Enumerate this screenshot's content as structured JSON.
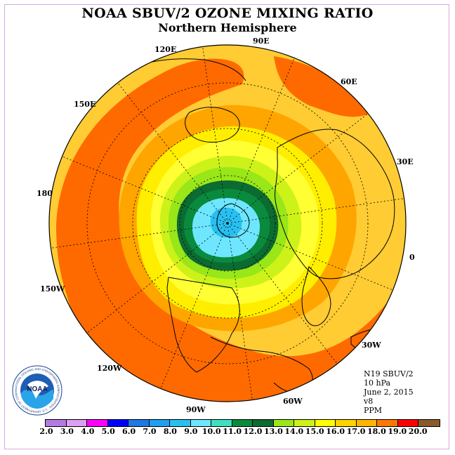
{
  "title": "NOAA SBUV/2 OZONE MIXING RATIO",
  "subtitle": "Northern Hemisphere",
  "longitude_labels": [
    "90E",
    "60E",
    "30E",
    "0",
    "30W",
    "60W",
    "90W",
    "120W",
    "150W",
    "180",
    "150E",
    "120E"
  ],
  "info": {
    "satellite": "N19 SBUV/2",
    "pressure": "10 hPa",
    "date": "June 2, 2015",
    "version": "v8",
    "units": "PPM"
  },
  "logo": {
    "center_text": "NOAA",
    "ring_text": "NATIONAL OCEANIC AND ATMOSPHERIC ADMINISTRATION · U.S. DEPARTMENT OF COMMERCE"
  },
  "colorbar": {
    "labels": [
      "2.0",
      "3.0",
      "4.0",
      "5.0",
      "6.0",
      "7.0",
      "8.0",
      "9.0",
      "10.0",
      "11.0",
      "12.0",
      "13.0",
      "14.0",
      "15.0",
      "16.0",
      "17.0",
      "18.0",
      "19.0",
      "20.0"
    ],
    "colors": [
      "#b57be3",
      "#dda0f0",
      "#ff00ff",
      "#0000ff",
      "#1e78e6",
      "#1ea0f0",
      "#28c0f0",
      "#6ee6ff",
      "#3fe0c0",
      "#0a8a3c",
      "#0b6b30",
      "#9ae619",
      "#ccf21a",
      "#ffff00",
      "#ffd200",
      "#ffb400",
      "#ff7800",
      "#ff0000",
      "#8b5a2b"
    ]
  },
  "map_colors": {
    "ocean_edge": "#ffcc33",
    "orange_band": "#ffa500",
    "red_band": "#ff6a00",
    "light_yellow": "#ffee00",
    "yellow": "#ffff33",
    "lime": "#ccf21a",
    "green": "#99e619",
    "dark_green": "#0b6b30",
    "mid_green": "#0a8a3c",
    "cyan": "#6ee6ff",
    "blue": "#28c0f0"
  }
}
